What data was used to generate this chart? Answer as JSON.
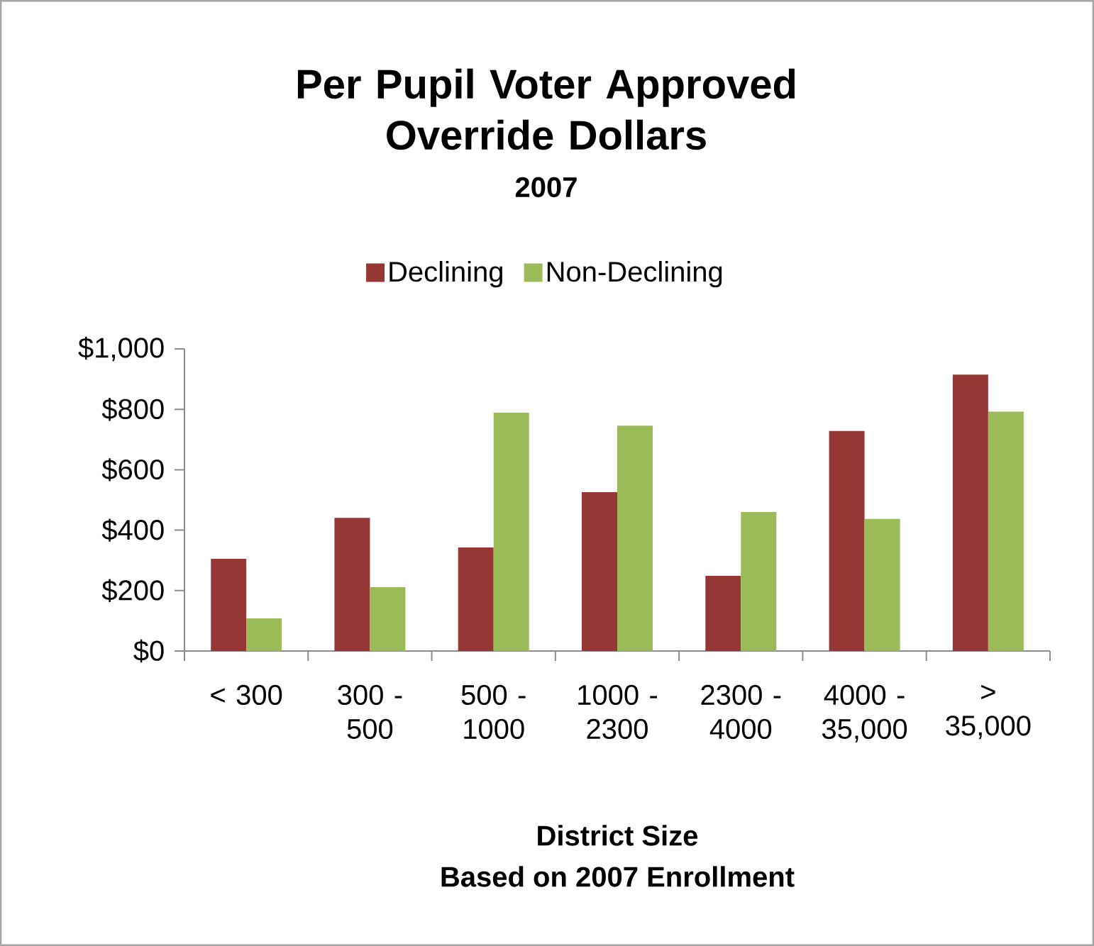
{
  "chart_data": {
    "type": "bar",
    "title": "Per Pupil Voter Approved Override Dollars",
    "subtitle": "2007",
    "xlabel": "District Size",
    "annotations": [
      "Based on 2007 Enrollment"
    ],
    "categories": [
      "< 300",
      "300 - 500",
      "500 - 1000",
      "1000 - 2300",
      "2300 - 4000",
      "4000 - 35,000",
      "> 35,000"
    ],
    "series": [
      {
        "name": "Declining",
        "color": "#953735",
        "values": [
          305,
          441,
          343,
          526,
          249,
          728,
          915
        ]
      },
      {
        "name": "Non-Declining",
        "color": "#9bbb59",
        "values": [
          108,
          211,
          789,
          746,
          460,
          437,
          793
        ]
      }
    ],
    "ylim": [
      0,
      1000
    ],
    "yticks": [
      {
        "value": 0,
        "label": "$0"
      },
      {
        "value": 200,
        "label": "$200"
      },
      {
        "value": 400,
        "label": "$400"
      },
      {
        "value": 600,
        "label": "$600"
      },
      {
        "value": 800,
        "label": "$800"
      },
      {
        "value": 1000,
        "label": "$1,000"
      }
    ],
    "legend": "top"
  }
}
